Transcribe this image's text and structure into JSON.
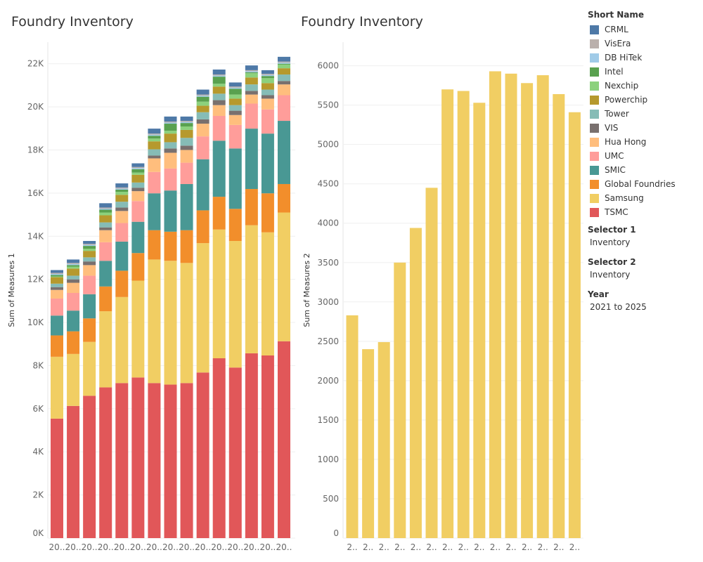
{
  "legend": {
    "title": "Short Name"
  },
  "filters": [
    {
      "label": "Selector 1",
      "value": "Inventory"
    },
    {
      "label": "Selector 2",
      "value": "Inventory"
    },
    {
      "label": "Year",
      "value": "2021 to 2025"
    }
  ],
  "chart_data": [
    {
      "type": "bar",
      "stacked": true,
      "title": "Foundry Inventory",
      "xlabel": "",
      "ylabel": "Sum of Measures 1",
      "ylim": [
        0,
        23000
      ],
      "yticks": [
        0,
        2000,
        4000,
        6000,
        8000,
        10000,
        12000,
        14000,
        16000,
        18000,
        20000,
        22000
      ],
      "ytick_labels": [
        "0K",
        "2K",
        "4K",
        "6K",
        "8K",
        "10K",
        "12K",
        "14K",
        "16K",
        "18K",
        "20K",
        "22K"
      ],
      "categories": [
        "20..",
        "20..",
        "20..",
        "20..",
        "20..",
        "20..",
        "20..",
        "20..",
        "20..",
        "20..",
        "20..",
        "20..",
        "20..",
        "20..",
        "20.."
      ],
      "series": [
        {
          "name": "TSMC",
          "color": "#e15759",
          "values": [
            5540,
            6130,
            6600,
            6990,
            7190,
            7450,
            7190,
            7120,
            7190,
            7680,
            8340,
            7910,
            8570,
            8470,
            9130
          ]
        },
        {
          "name": "Samsung",
          "color": "#f1ce63",
          "values": [
            2870,
            2410,
            2500,
            3530,
            3990,
            4490,
            5730,
            5740,
            5570,
            6000,
            5970,
            5870,
            5940,
            5710,
            5970
          ]
        },
        {
          "name": "Global Foundries",
          "color": "#f28e2b",
          "values": [
            990,
            1050,
            1090,
            1150,
            1220,
            1280,
            1360,
            1350,
            1520,
            1520,
            1520,
            1490,
            1680,
            1810,
            1320
          ]
        },
        {
          "name": "SMIC",
          "color": "#499894",
          "values": [
            920,
            960,
            1120,
            1190,
            1350,
            1450,
            1710,
            1910,
            2140,
            2370,
            2600,
            2800,
            2800,
            2770,
            2930
          ]
        },
        {
          "name": "UMC",
          "color": "#ff9d9a",
          "values": [
            790,
            820,
            860,
            860,
            860,
            960,
            990,
            1020,
            990,
            1060,
            1150,
            1090,
            1160,
            1120,
            1190
          ]
        },
        {
          "name": "Hua Hong",
          "color": "#ffbe7d",
          "values": [
            400,
            470,
            490,
            560,
            560,
            460,
            630,
            730,
            590,
            590,
            500,
            460,
            420,
            500,
            500
          ]
        },
        {
          "name": "VIS",
          "color": "#79706e",
          "values": [
            130,
            160,
            170,
            130,
            160,
            160,
            130,
            200,
            200,
            200,
            230,
            200,
            170,
            160,
            160
          ]
        },
        {
          "name": "Tower",
          "color": "#86bcb6",
          "values": [
            160,
            170,
            190,
            230,
            270,
            240,
            290,
            290,
            360,
            330,
            300,
            260,
            300,
            260,
            300
          ]
        },
        {
          "name": "Powerchip",
          "color": "#b6992d",
          "values": [
            300,
            330,
            300,
            330,
            320,
            360,
            370,
            400,
            370,
            300,
            330,
            300,
            320,
            300,
            290
          ]
        },
        {
          "name": "Nexchip",
          "color": "#8cd17d",
          "values": [
            30,
            90,
            100,
            130,
            140,
            100,
            130,
            130,
            160,
            190,
            130,
            190,
            200,
            230,
            170
          ]
        },
        {
          "name": "Intel",
          "color": "#59a14f",
          "values": [
            70,
            70,
            130,
            130,
            100,
            160,
            130,
            330,
            160,
            230,
            330,
            270,
            40,
            100,
            40
          ]
        },
        {
          "name": "DB HiTek",
          "color": "#a0cbe8",
          "values": [
            50,
            50,
            50,
            50,
            50,
            50,
            50,
            50,
            50,
            50,
            50,
            50,
            50,
            50,
            50
          ]
        },
        {
          "name": "VisEra",
          "color": "#bab0ac",
          "values": [
            50,
            50,
            50,
            50,
            50,
            50,
            50,
            50,
            50,
            50,
            50,
            50,
            50,
            50,
            50
          ]
        },
        {
          "name": "CRML",
          "color": "#4e79a7",
          "values": [
            130,
            160,
            130,
            200,
            190,
            170,
            230,
            230,
            200,
            230,
            230,
            190,
            220,
            170,
            220
          ]
        }
      ]
    },
    {
      "type": "bar",
      "title": "Foundry Inventory",
      "xlabel": "",
      "ylabel": "Sum of Measures 2",
      "ylim": [
        0,
        6300
      ],
      "yticks": [
        0,
        500,
        1000,
        1500,
        2000,
        2500,
        3000,
        3500,
        4000,
        4500,
        5000,
        5500,
        6000
      ],
      "ytick_labels": [
        "0",
        "500",
        "1000",
        "1500",
        "2000",
        "2500",
        "3000",
        "3500",
        "4000",
        "4500",
        "5000",
        "5500",
        "6000"
      ],
      "categories": [
        "2..",
        "2..",
        "2..",
        "2..",
        "2..",
        "2..",
        "2..",
        "2..",
        "2..",
        "2..",
        "2..",
        "2..",
        "2..",
        "2..",
        "2.."
      ],
      "series": [
        {
          "name": "Samsung",
          "color": "#f1ce63",
          "values": [
            2830,
            2400,
            2490,
            3500,
            3940,
            4450,
            5700,
            5680,
            5530,
            5930,
            5900,
            5780,
            5880,
            5640,
            5410
          ]
        }
      ]
    }
  ]
}
